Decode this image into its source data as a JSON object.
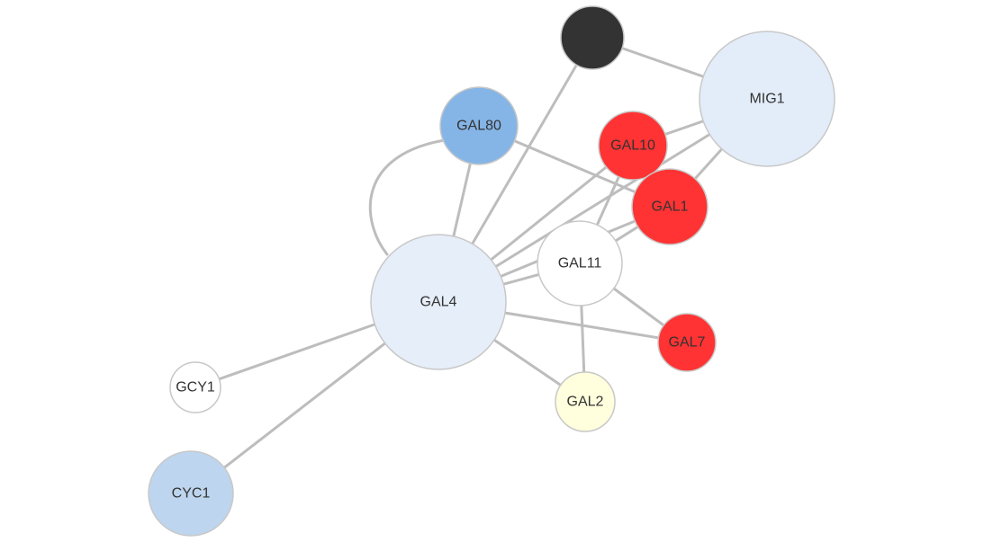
{
  "graph": {
    "nodes": [
      {
        "id": "unlabeled",
        "label": "",
        "color": "#333333"
      },
      {
        "id": "MIG1",
        "label": "MIG1",
        "color": "#e3edf9"
      },
      {
        "id": "GAL80",
        "label": "GAL80",
        "color": "#85b5e6"
      },
      {
        "id": "GAL10",
        "label": "GAL10",
        "color": "#ff3333"
      },
      {
        "id": "GAL1",
        "label": "GAL1",
        "color": "#ff3333"
      },
      {
        "id": "GAL11",
        "label": "GAL11",
        "color": "#ffffff"
      },
      {
        "id": "GAL4",
        "label": "GAL4",
        "color": "#e6eef9"
      },
      {
        "id": "GAL7",
        "label": "GAL7",
        "color": "#ff3333"
      },
      {
        "id": "GCY1",
        "label": "GCY1",
        "color": "#ffffff"
      },
      {
        "id": "GAL2",
        "label": "GAL2",
        "color": "#ffffdd"
      },
      {
        "id": "CYC1",
        "label": "CYC1",
        "color": "#bdd5ee"
      }
    ],
    "edges": [
      {
        "source": "unlabeled",
        "target": "MIG1"
      },
      {
        "source": "unlabeled",
        "target": "GAL4"
      },
      {
        "source": "GAL80",
        "target": "GAL4"
      },
      {
        "source": "GAL80",
        "target": "GAL4",
        "curved": true
      },
      {
        "source": "GAL80",
        "target": "GAL1"
      },
      {
        "source": "MIG1",
        "target": "GAL10"
      },
      {
        "source": "MIG1",
        "target": "GAL4"
      },
      {
        "source": "MIG1",
        "target": "GAL1"
      },
      {
        "source": "GAL10",
        "target": "GAL4"
      },
      {
        "source": "GAL10",
        "target": "GAL11"
      },
      {
        "source": "GAL1",
        "target": "GAL4"
      },
      {
        "source": "GAL1",
        "target": "GAL11"
      },
      {
        "source": "GAL11",
        "target": "GAL4"
      },
      {
        "source": "GAL11",
        "target": "GAL7"
      },
      {
        "source": "GAL11",
        "target": "GAL2"
      },
      {
        "source": "GAL4",
        "target": "GAL7"
      },
      {
        "source": "GAL4",
        "target": "GAL2"
      },
      {
        "source": "GAL4",
        "target": "GCY1"
      },
      {
        "source": "GAL4",
        "target": "CYC1"
      }
    ]
  }
}
